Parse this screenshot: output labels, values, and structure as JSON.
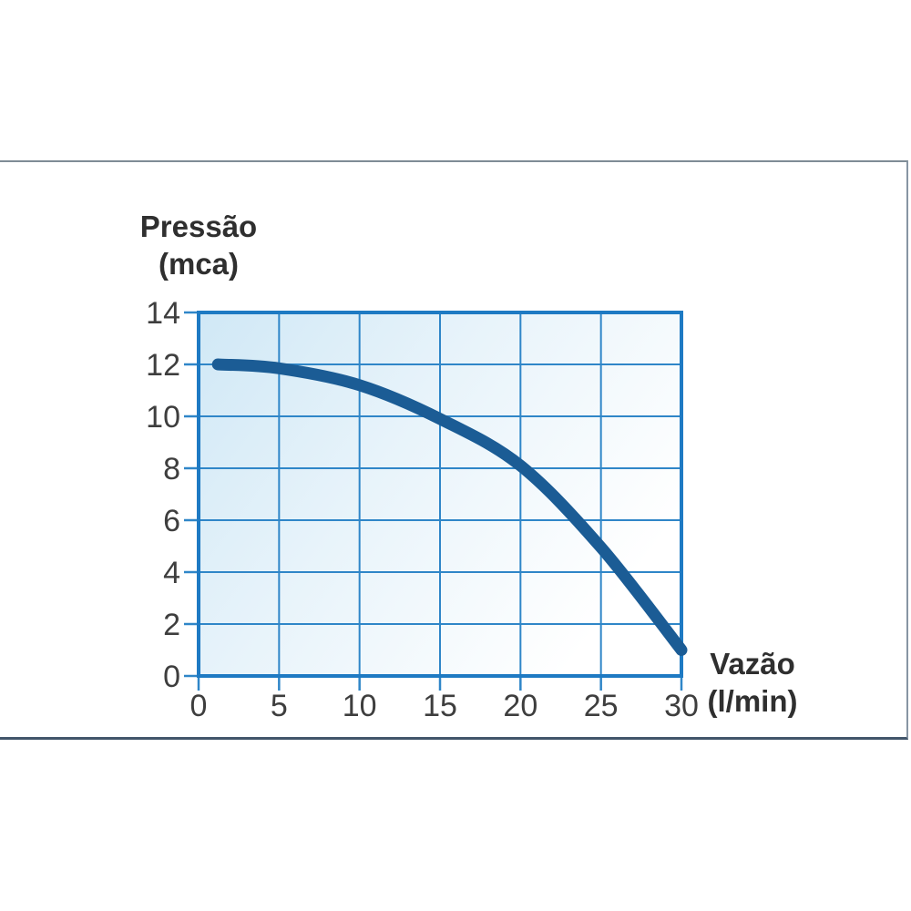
{
  "card": {
    "border_top_color": "#7f8c96",
    "border_right_color": "#8795a3",
    "border_bottom_color": "#42566a"
  },
  "chart_data": {
    "type": "line",
    "title": "",
    "y_axis": {
      "title_line1": "Pressão",
      "title_line2": "(mca)",
      "ticks": [
        0,
        2,
        4,
        6,
        8,
        10,
        12,
        14
      ],
      "lim": [
        0,
        14
      ]
    },
    "x_axis": {
      "title_line1": "Vazão",
      "title_line2": "(l/min)",
      "ticks": [
        0,
        5,
        10,
        15,
        20,
        25,
        30
      ],
      "lim": [
        0,
        30
      ]
    },
    "series": [
      {
        "name": "pump-head-curve",
        "color": "#1b5c95",
        "points": [
          [
            1.2,
            12.0
          ],
          [
            5,
            11.85
          ],
          [
            10,
            11.2
          ],
          [
            15,
            9.9
          ],
          [
            20,
            8.1
          ],
          [
            25,
            4.95
          ],
          [
            30,
            1.0
          ]
        ]
      }
    ],
    "grid": true,
    "legend": false,
    "colors": {
      "frame": "#1e7ac3",
      "grid": "#2f86c8",
      "plot_bg_start": "#d0e8f6",
      "plot_bg_mid": "#e7f3fa",
      "plot_bg_end": "#ffffff",
      "tick_text": "#3e3e3e",
      "title_text": "#2f2f2f"
    }
  }
}
